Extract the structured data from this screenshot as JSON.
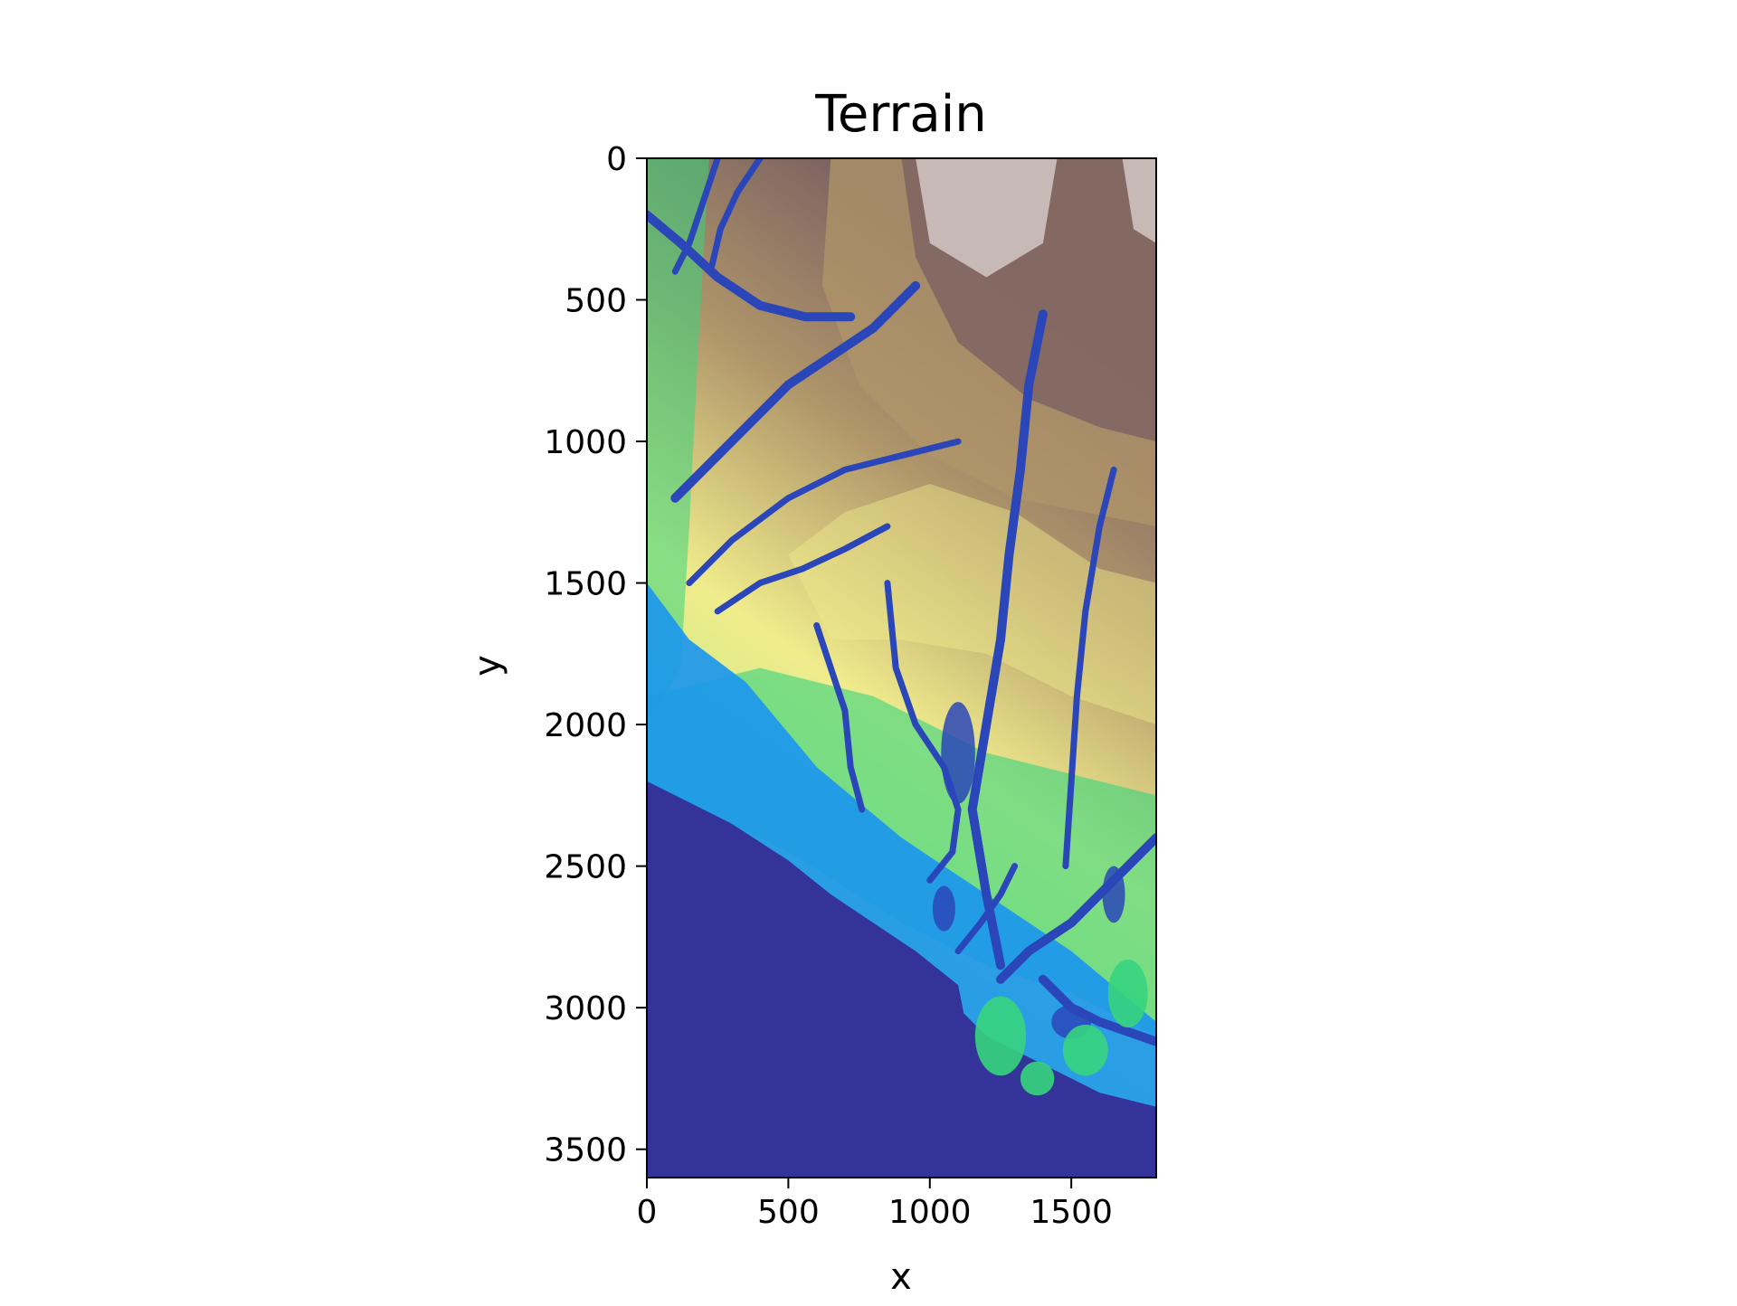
{
  "chart_data": {
    "type": "heatmap",
    "title": "Terrain",
    "xlabel": "x",
    "ylabel": "y",
    "colormap": "terrain",
    "xlim": [
      0,
      1800
    ],
    "ylim": [
      3600,
      0
    ],
    "x_ticks": [
      0,
      500,
      1000,
      1500
    ],
    "y_ticks": [
      0,
      500,
      1000,
      1500,
      2000,
      2500,
      3000,
      3500
    ],
    "x_tick_labels": [
      "0",
      "500",
      "1000",
      "1500"
    ],
    "y_tick_labels": [
      "0",
      "500",
      "1000",
      "1500",
      "2000",
      "2500",
      "3000",
      "3500"
    ],
    "grid": false,
    "legend": "none",
    "colors": {
      "sea": "#333399",
      "deep": "#2a46b8",
      "shallow": "#1996f0",
      "lowland": "#36d47e",
      "plain": "#b0ec84",
      "hills": "#f0ec8c",
      "upland": "#b0966a",
      "mountain": "#7e6461",
      "peak": "#d8cdcb"
    }
  }
}
